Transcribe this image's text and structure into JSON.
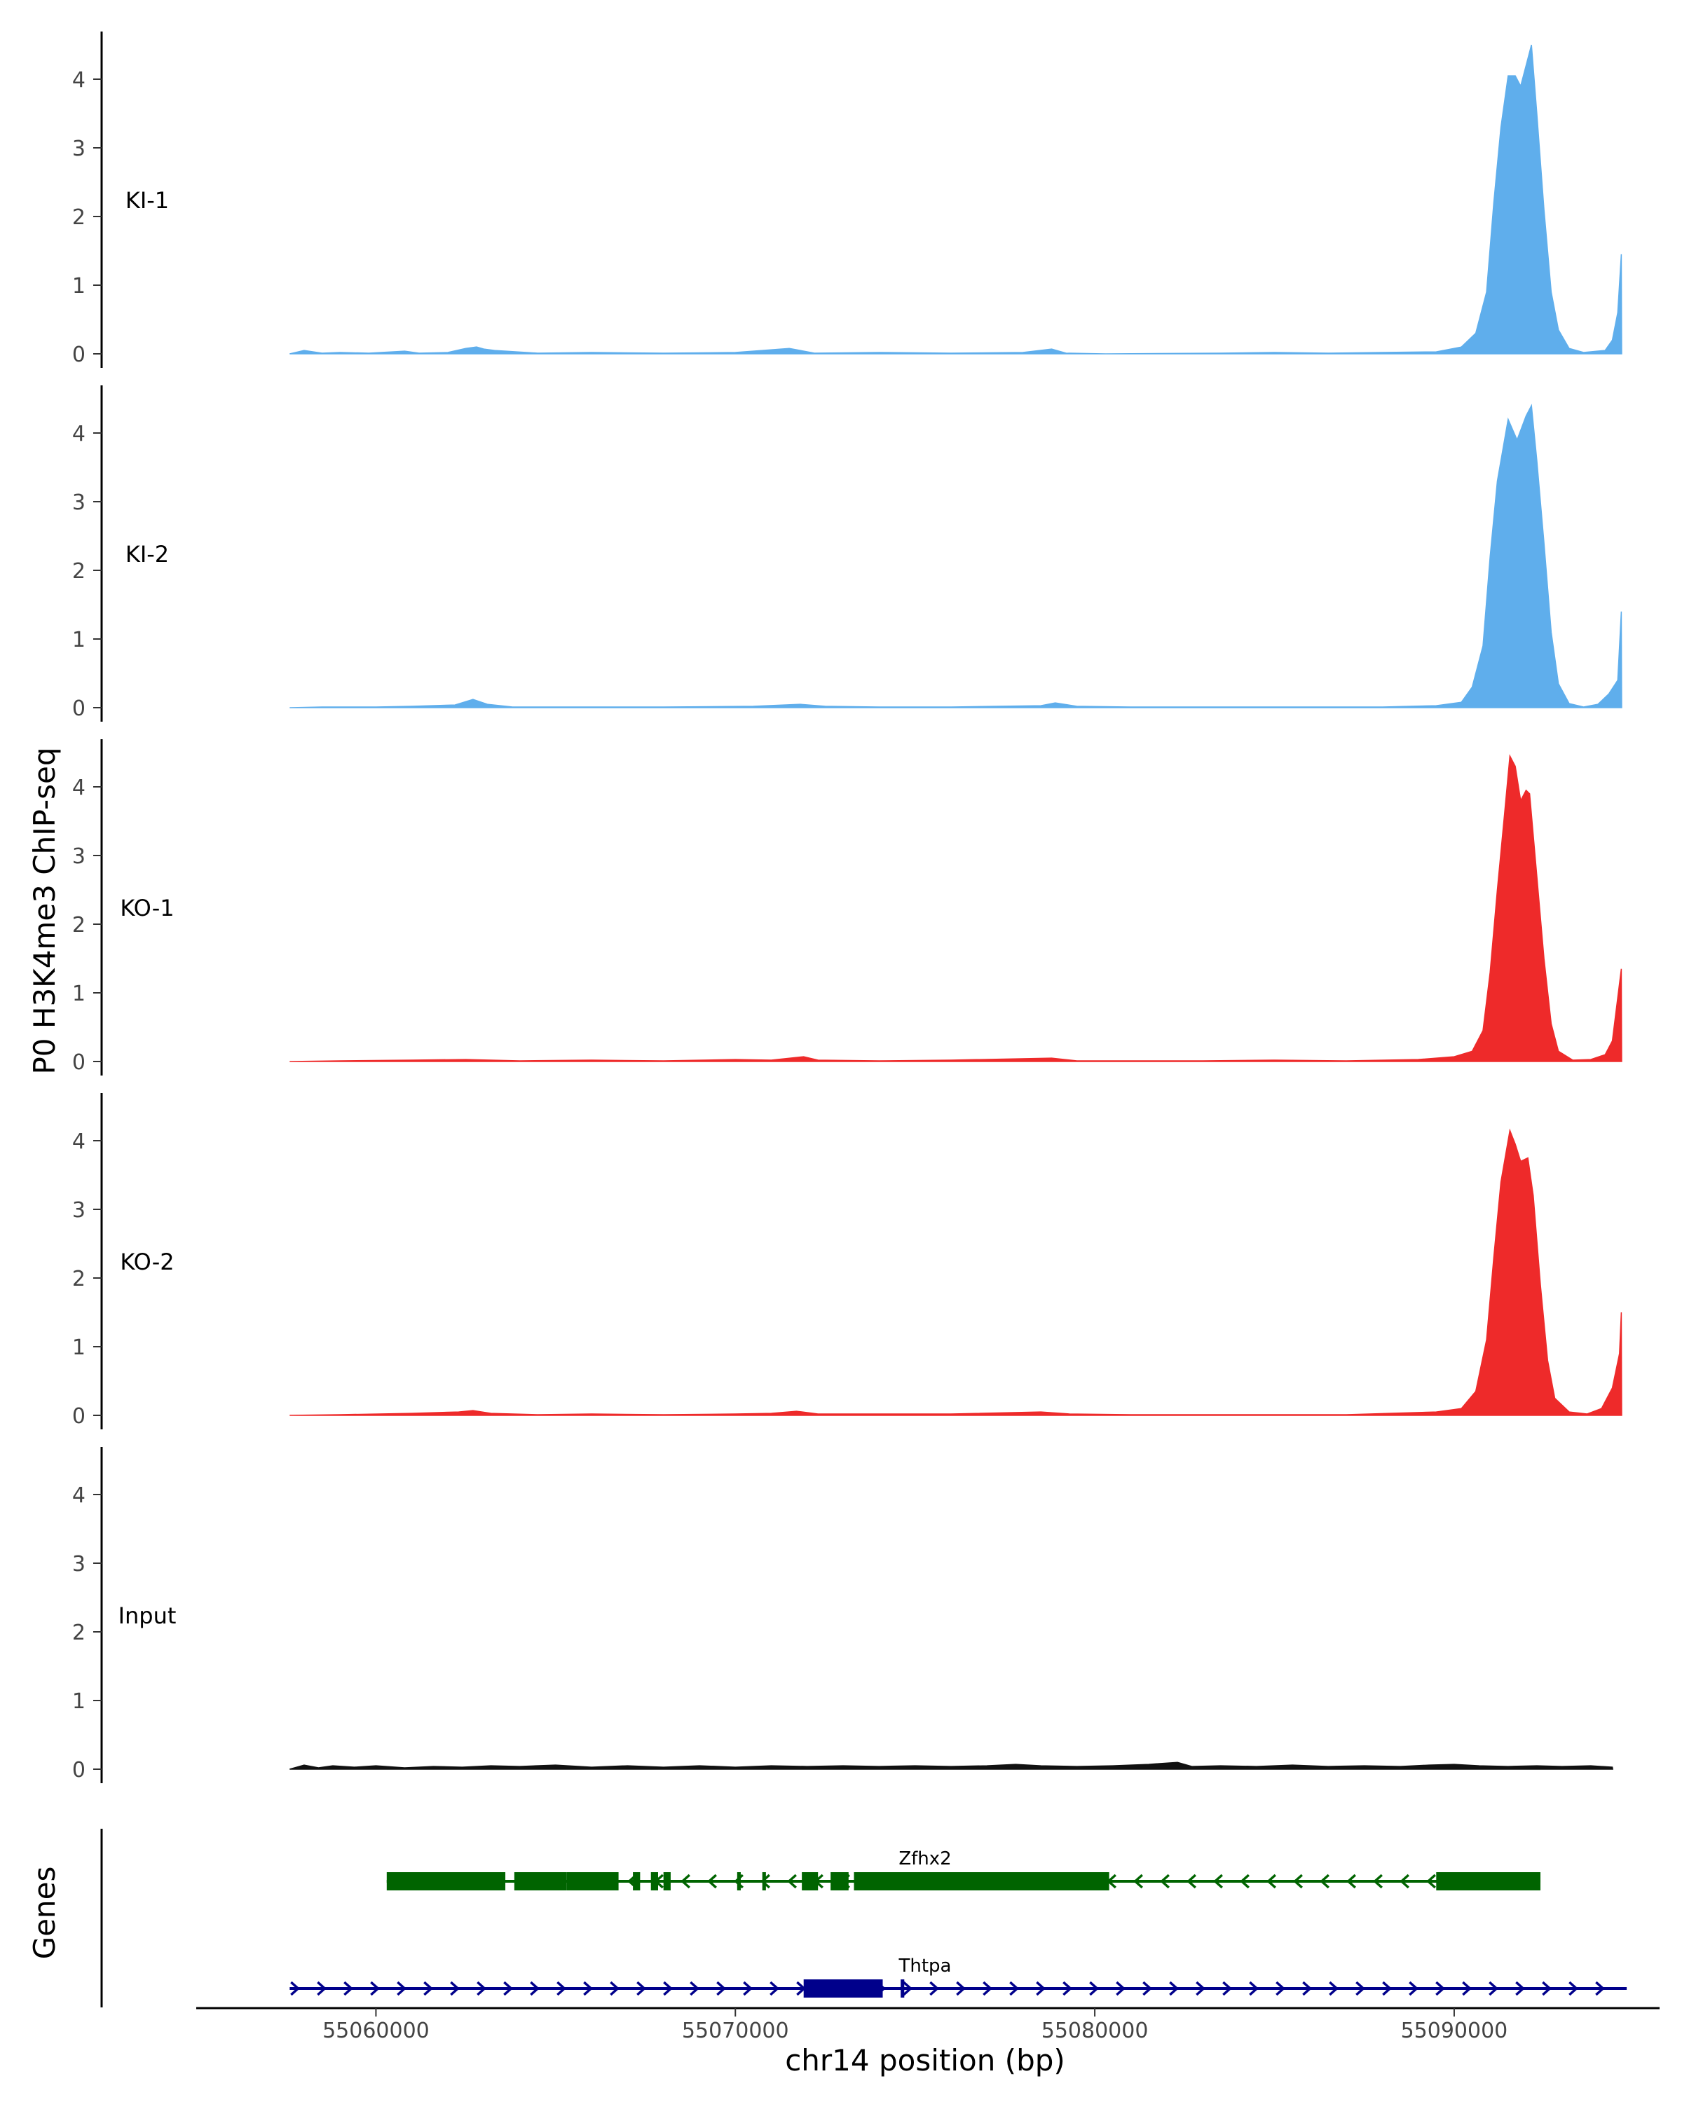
{
  "chart_data": {
    "type": "area",
    "ylabel": "P0 H3K4me3 ChIP-seq",
    "xlabel": "chr14 position (bp)",
    "xlim": [
      55055000,
      55095500
    ],
    "ylim": [
      0,
      4.7
    ],
    "y_ticks": [
      0,
      1,
      2,
      3,
      4
    ],
    "x_ticks": [
      55060000,
      55070000,
      55080000,
      55090000
    ],
    "x_tick_labels": [
      "55060000",
      "55070000",
      "55080000",
      "55090000"
    ],
    "grid": false,
    "genes_panel_label": "Genes",
    "tracks": [
      {
        "label": "KI-1",
        "color": "#5faeec",
        "points": [
          [
            55057600,
            0
          ],
          [
            55058000,
            0.05
          ],
          [
            55058500,
            0.01
          ],
          [
            55059000,
            0.02
          ],
          [
            55059800,
            0.01
          ],
          [
            55060800,
            0.04
          ],
          [
            55061200,
            0.01
          ],
          [
            55062000,
            0.02
          ],
          [
            55062500,
            0.08
          ],
          [
            55062800,
            0.1
          ],
          [
            55063000,
            0.07
          ],
          [
            55063300,
            0.05
          ],
          [
            55064500,
            0.01
          ],
          [
            55066000,
            0.02
          ],
          [
            55068000,
            0.01
          ],
          [
            55070000,
            0.02
          ],
          [
            55071500,
            0.08
          ],
          [
            55072200,
            0.01
          ],
          [
            55074000,
            0.02
          ],
          [
            55076000,
            0.01
          ],
          [
            55078000,
            0.02
          ],
          [
            55078800,
            0.07
          ],
          [
            55079200,
            0.01
          ],
          [
            55080300,
            0
          ],
          [
            55083500,
            0.01
          ],
          [
            55085000,
            0.02
          ],
          [
            55086500,
            0.01
          ],
          [
            55088000,
            0.02
          ],
          [
            55089500,
            0.03
          ],
          [
            55090200,
            0.1
          ],
          [
            55090600,
            0.3
          ],
          [
            55090900,
            0.9
          ],
          [
            55091100,
            2.2
          ],
          [
            55091300,
            3.3
          ],
          [
            55091500,
            4.05
          ],
          [
            55091700,
            4.05
          ],
          [
            55091850,
            3.9
          ],
          [
            55092000,
            4.2
          ],
          [
            55092150,
            4.5
          ],
          [
            55092300,
            3.5
          ],
          [
            55092500,
            2.1
          ],
          [
            55092700,
            0.9
          ],
          [
            55092900,
            0.35
          ],
          [
            55093200,
            0.08
          ],
          [
            55093600,
            0.02
          ],
          [
            55094200,
            0.05
          ],
          [
            55094400,
            0.2
          ],
          [
            55094550,
            0.6
          ],
          [
            55094650,
            1.45
          ],
          [
            55094660,
            0
          ]
        ]
      },
      {
        "label": "KI-2",
        "color": "#5faeec",
        "points": [
          [
            55057600,
            0
          ],
          [
            55058500,
            0.01
          ],
          [
            55060000,
            0.01
          ],
          [
            55061000,
            0.02
          ],
          [
            55062200,
            0.04
          ],
          [
            55062700,
            0.12
          ],
          [
            55063100,
            0.05
          ],
          [
            55063800,
            0.01
          ],
          [
            55066000,
            0.01
          ],
          [
            55068000,
            0.01
          ],
          [
            55070500,
            0.02
          ],
          [
            55071800,
            0.05
          ],
          [
            55072500,
            0.02
          ],
          [
            55074000,
            0.01
          ],
          [
            55076000,
            0.01
          ],
          [
            55078500,
            0.03
          ],
          [
            55078900,
            0.07
          ],
          [
            55079500,
            0.02
          ],
          [
            55081000,
            0.01
          ],
          [
            55084000,
            0.01
          ],
          [
            55086000,
            0.01
          ],
          [
            55088000,
            0.01
          ],
          [
            55089500,
            0.03
          ],
          [
            55090200,
            0.08
          ],
          [
            55090500,
            0.3
          ],
          [
            55090800,
            0.9
          ],
          [
            55091000,
            2.2
          ],
          [
            55091200,
            3.3
          ],
          [
            55091500,
            4.2
          ],
          [
            55091750,
            3.9
          ],
          [
            55092000,
            4.25
          ],
          [
            55092150,
            4.4
          ],
          [
            55092300,
            3.6
          ],
          [
            55092500,
            2.4
          ],
          [
            55092700,
            1.1
          ],
          [
            55092900,
            0.35
          ],
          [
            55093200,
            0.06
          ],
          [
            55093600,
            0.01
          ],
          [
            55094000,
            0.05
          ],
          [
            55094300,
            0.2
          ],
          [
            55094550,
            0.4
          ],
          [
            55094650,
            1.4
          ],
          [
            55094660,
            0
          ]
        ]
      },
      {
        "label": "KO-1",
        "color": "#ee2a2a",
        "points": [
          [
            55057600,
            0
          ],
          [
            55059000,
            0.01
          ],
          [
            55061000,
            0.02
          ],
          [
            55062500,
            0.03
          ],
          [
            55064000,
            0.01
          ],
          [
            55066000,
            0.02
          ],
          [
            55068000,
            0.01
          ],
          [
            55070000,
            0.03
          ],
          [
            55071000,
            0.02
          ],
          [
            55071900,
            0.07
          ],
          [
            55072300,
            0.02
          ],
          [
            55074000,
            0.01
          ],
          [
            55076000,
            0.02
          ],
          [
            55078800,
            0.05
          ],
          [
            55079500,
            0.01
          ],
          [
            55081000,
            0.01
          ],
          [
            55083000,
            0.01
          ],
          [
            55085000,
            0.02
          ],
          [
            55087000,
            0.01
          ],
          [
            55089000,
            0.03
          ],
          [
            55090000,
            0.07
          ],
          [
            55090500,
            0.15
          ],
          [
            55090800,
            0.45
          ],
          [
            55091000,
            1.3
          ],
          [
            55091200,
            2.5
          ],
          [
            55091400,
            3.6
          ],
          [
            55091550,
            4.45
          ],
          [
            55091700,
            4.3
          ],
          [
            55091850,
            3.8
          ],
          [
            55092000,
            3.95
          ],
          [
            55092100,
            3.9
          ],
          [
            55092300,
            2.7
          ],
          [
            55092500,
            1.5
          ],
          [
            55092700,
            0.55
          ],
          [
            55092900,
            0.15
          ],
          [
            55093300,
            0.02
          ],
          [
            55093800,
            0.03
          ],
          [
            55094200,
            0.1
          ],
          [
            55094400,
            0.3
          ],
          [
            55094650,
            1.35
          ],
          [
            55094660,
            0
          ]
        ]
      },
      {
        "label": "KO-2",
        "color": "#ee2a2a",
        "points": [
          [
            55057600,
            0
          ],
          [
            55059000,
            0.01
          ],
          [
            55061000,
            0.03
          ],
          [
            55062300,
            0.05
          ],
          [
            55062700,
            0.07
          ],
          [
            55063200,
            0.03
          ],
          [
            55064500,
            0.01
          ],
          [
            55066000,
            0.02
          ],
          [
            55068000,
            0.01
          ],
          [
            55070000,
            0.02
          ],
          [
            55071000,
            0.03
          ],
          [
            55071700,
            0.06
          ],
          [
            55072300,
            0.02
          ],
          [
            55074000,
            0.02
          ],
          [
            55076000,
            0.02
          ],
          [
            55078500,
            0.05
          ],
          [
            55079300,
            0.02
          ],
          [
            55081000,
            0.01
          ],
          [
            55083000,
            0.01
          ],
          [
            55085000,
            0.01
          ],
          [
            55087000,
            0.01
          ],
          [
            55089500,
            0.05
          ],
          [
            55090200,
            0.1
          ],
          [
            55090600,
            0.35
          ],
          [
            55090900,
            1.1
          ],
          [
            55091100,
            2.3
          ],
          [
            55091300,
            3.4
          ],
          [
            55091550,
            4.15
          ],
          [
            55091700,
            3.95
          ],
          [
            55091850,
            3.7
          ],
          [
            55092050,
            3.75
          ],
          [
            55092200,
            3.2
          ],
          [
            55092400,
            1.9
          ],
          [
            55092600,
            0.8
          ],
          [
            55092800,
            0.25
          ],
          [
            55093200,
            0.05
          ],
          [
            55093700,
            0.02
          ],
          [
            55094100,
            0.1
          ],
          [
            55094400,
            0.4
          ],
          [
            55094600,
            0.9
          ],
          [
            55094650,
            1.5
          ],
          [
            55094660,
            0
          ]
        ]
      },
      {
        "label": "Input",
        "color": "#111111",
        "points": [
          [
            55057600,
            0
          ],
          [
            55058000,
            0.06
          ],
          [
            55058400,
            0.02
          ],
          [
            55058800,
            0.05
          ],
          [
            55059400,
            0.03
          ],
          [
            55060000,
            0.05
          ],
          [
            55060800,
            0.02
          ],
          [
            55061600,
            0.04
          ],
          [
            55062400,
            0.03
          ],
          [
            55063200,
            0.05
          ],
          [
            55064000,
            0.04
          ],
          [
            55065000,
            0.06
          ],
          [
            55066000,
            0.03
          ],
          [
            55067000,
            0.05
          ],
          [
            55068000,
            0.03
          ],
          [
            55069000,
            0.05
          ],
          [
            55070000,
            0.03
          ],
          [
            55071000,
            0.05
          ],
          [
            55072000,
            0.04
          ],
          [
            55073000,
            0.05
          ],
          [
            55074000,
            0.04
          ],
          [
            55075000,
            0.05
          ],
          [
            55076000,
            0.04
          ],
          [
            55077000,
            0.05
          ],
          [
            55077800,
            0.07
          ],
          [
            55078500,
            0.05
          ],
          [
            55079500,
            0.04
          ],
          [
            55080500,
            0.05
          ],
          [
            55081500,
            0.07
          ],
          [
            55082300,
            0.1
          ],
          [
            55082700,
            0.04
          ],
          [
            55083500,
            0.05
          ],
          [
            55084500,
            0.04
          ],
          [
            55085500,
            0.06
          ],
          [
            55086500,
            0.04
          ],
          [
            55087500,
            0.05
          ],
          [
            55088500,
            0.04
          ],
          [
            55089300,
            0.06
          ],
          [
            55090000,
            0.07
          ],
          [
            55090700,
            0.05
          ],
          [
            55091500,
            0.04
          ],
          [
            55092300,
            0.05
          ],
          [
            55093000,
            0.04
          ],
          [
            55093800,
            0.05
          ],
          [
            55094400,
            0.03
          ],
          [
            55094410,
            0
          ]
        ]
      }
    ],
    "genes": [
      {
        "name": "Zfhx2",
        "strand": "-",
        "color": "#006400",
        "start": 55060300,
        "end": 55092400,
        "exons": [
          [
            55060300,
            55063600
          ],
          [
            55063850,
            55065300
          ],
          [
            55065300,
            55066750
          ],
          [
            55067150,
            55067350
          ],
          [
            55067650,
            55067850
          ],
          [
            55068000,
            55068200
          ],
          [
            55070050,
            55070150
          ],
          [
            55070750,
            55070850
          ],
          [
            55071850,
            55072300
          ],
          [
            55072650,
            55073150
          ],
          [
            55073300,
            55080400
          ],
          [
            55089500,
            55092400
          ]
        ]
      },
      {
        "name": "Thtpa",
        "strand": "+",
        "color": "#00008b",
        "start": 55057600,
        "end": 55094800,
        "exons": [
          [
            55071900,
            55074100
          ],
          [
            55074600,
            55074700
          ]
        ]
      }
    ]
  }
}
